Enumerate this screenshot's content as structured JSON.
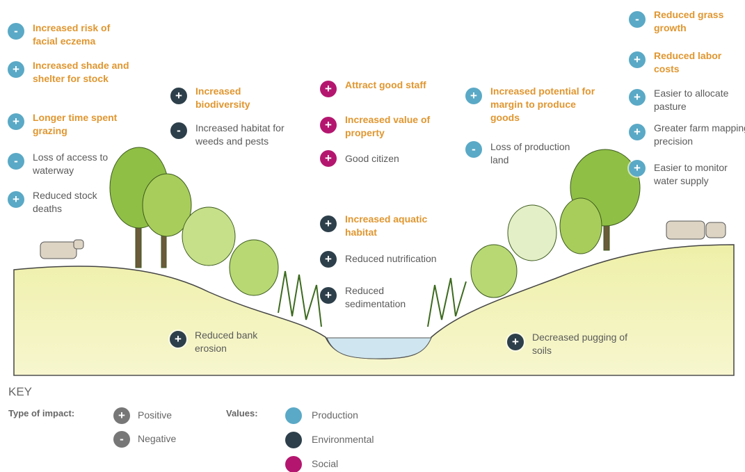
{
  "items": [
    {
      "sign": "-",
      "label": "Increased risk of facial eczema",
      "color": "#5aa9c6",
      "text_color": "#e0962f"
    },
    {
      "sign": "+",
      "label": "Increased shade and shelter for stock",
      "color": "#5aa9c6",
      "text_color": "#e0962f"
    },
    {
      "sign": "+",
      "label": "Longer time spent grazing",
      "color": "#5aa9c6",
      "text_color": "#e0962f"
    },
    {
      "sign": "-",
      "label": "Loss of access to waterway",
      "color": "#5aa9c6",
      "text_color": "#5a5a5a"
    },
    {
      "sign": "+",
      "label": "Reduced stock deaths",
      "color": "#5aa9c6",
      "text_color": "#5a5a5a"
    },
    {
      "sign": "+",
      "label": "Increased biodiversity",
      "color": "#2d3f4a",
      "text_color": "#e0962f"
    },
    {
      "sign": "-",
      "label": "Increased habitat for weeds and pests",
      "color": "#2d3f4a",
      "text_color": "#5a5a5a"
    },
    {
      "sign": "+",
      "label": "Attract good staff",
      "color": "#b4166f",
      "text_color": "#e0962f"
    },
    {
      "sign": "+",
      "label": "Increased value of property",
      "color": "#b4166f",
      "text_color": "#e0962f"
    },
    {
      "sign": "+",
      "label": "Good citizen",
      "color": "#b4166f",
      "text_color": "#5a5a5a"
    },
    {
      "sign": "+",
      "label": "Increased aquatic habitat",
      "color": "#2d3f4a",
      "text_color": "#e0962f"
    },
    {
      "sign": "+",
      "label": "Reduced nutrification",
      "color": "#2d3f4a",
      "text_color": "#5a5a5a"
    },
    {
      "sign": "+",
      "label": "Reduced sedimentation",
      "color": "#2d3f4a",
      "text_color": "#5a5a5a"
    },
    {
      "sign": "+",
      "label": "Increased potential for margin to produce goods",
      "color": "#5aa9c6",
      "text_color": "#e0962f"
    },
    {
      "sign": "-",
      "label": "Loss of production land",
      "color": "#5aa9c6",
      "text_color": "#5a5a5a"
    },
    {
      "sign": "-",
      "label": "Reduced grass growth",
      "color": "#5aa9c6",
      "text_color": "#e0962f"
    },
    {
      "sign": "+",
      "label": "Reduced labor costs",
      "color": "#5aa9c6",
      "text_color": "#e0962f"
    },
    {
      "sign": "+",
      "label": "Easier to allocate pasture",
      "color": "#5aa9c6",
      "text_color": "#5a5a5a"
    },
    {
      "sign": "+",
      "label": "Greater farm mapping precision",
      "color": "#5aa9c6",
      "text_color": "#5a5a5a"
    },
    {
      "sign": "+",
      "label": "Easier to monitor water supply",
      "color": "#5aa9c6",
      "text_color": "#5a5a5a"
    },
    {
      "sign": "+",
      "label": "Reduced bank erosion",
      "color": "#2d3f4a",
      "text_color": "#5a5a5a"
    },
    {
      "sign": "+",
      "label": "Decreased pugging of soils",
      "color": "#2d3f4a",
      "text_color": "#5a5a5a"
    }
  ],
  "key": {
    "title": "KEY",
    "impact_heading": "Type of impact:",
    "impact_color": "#777777",
    "impacts": [
      {
        "sign": "+",
        "label": "Positive"
      },
      {
        "sign": "-",
        "label": "Negative"
      }
    ],
    "values_heading": "Values:",
    "values": [
      {
        "label": "Production",
        "color": "#5aa9c6"
      },
      {
        "label": "Environmental",
        "color": "#2d3f4a"
      },
      {
        "label": "Social",
        "color": "#b4166f"
      }
    ]
  }
}
